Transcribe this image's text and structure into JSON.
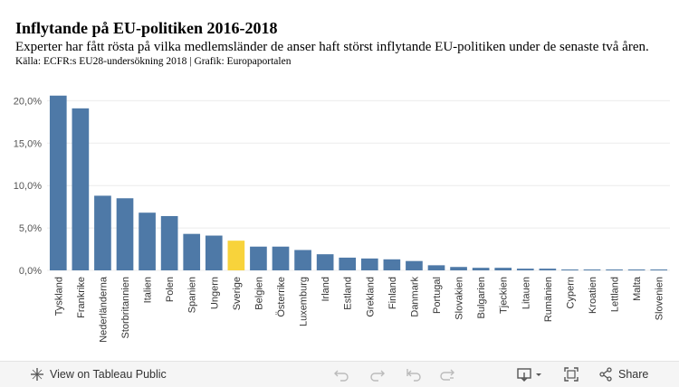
{
  "header": {
    "title": "Inflytande på EU-politiken 2016-2018",
    "subtitle": "Experter har fått rösta på vilka medlemsländer de anser haft störst inflytande EU-politiken under de senaste två åren.",
    "source": "Källa: ECFR:s EU28-undersökning 2018 | Grafik: Europaportalen"
  },
  "chart_data": {
    "type": "bar",
    "title": "Inflytande på EU-politiken 2016-2018",
    "xlabel": "",
    "ylabel": "",
    "ylim": [
      0,
      21
    ],
    "yticks": [
      0,
      5,
      10,
      15,
      20
    ],
    "ytick_labels": [
      "0,0%",
      "5,0%",
      "10,0%",
      "15,0%",
      "20,0%"
    ],
    "grid": true,
    "categories": [
      "Tyskland",
      "Frankrike",
      "Nederländerna",
      "Storbritannien",
      "Italien",
      "Polen",
      "Spanien",
      "Ungern",
      "Sverige",
      "Belgien",
      "Österrike",
      "Luxemburg",
      "Irland",
      "Estland",
      "Grekland",
      "Finland",
      "Danmark",
      "Portugal",
      "Slovakien",
      "Bulgarien",
      "Tjeckien",
      "Litauen",
      "Rumänien",
      "Cypern",
      "Kroatien",
      "Lettland",
      "Malta",
      "Slovenien"
    ],
    "values": [
      20.6,
      19.1,
      8.8,
      8.5,
      6.8,
      6.4,
      4.3,
      4.1,
      3.5,
      2.8,
      2.8,
      2.4,
      1.9,
      1.5,
      1.4,
      1.3,
      1.1,
      0.6,
      0.4,
      0.3,
      0.3,
      0.2,
      0.2,
      0.1,
      0.1,
      0.1,
      0.1,
      0.1
    ],
    "bar_color": "#4e79a7",
    "highlight_category": "Sverige",
    "highlight_color": "#f8d33b"
  },
  "toolbar": {
    "view_label": "View on Tableau Public",
    "share_label": "Share"
  },
  "icons": {
    "tableau": "tableau-icon",
    "undo": "undo-icon",
    "redo": "redo-icon",
    "revert": "revert-icon",
    "refresh": "refresh-icon",
    "download": "download-icon",
    "fullscreen": "fullscreen-icon",
    "share": "share-icon"
  }
}
